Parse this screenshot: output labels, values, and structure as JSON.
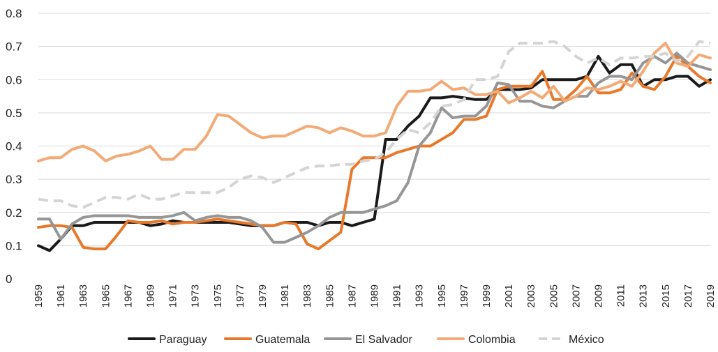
{
  "chart_data": {
    "type": "line",
    "title": "",
    "xlabel": "",
    "ylabel": "",
    "ylim": [
      0,
      0.8
    ],
    "yticks": [
      "0",
      "0.1",
      "0.2",
      "0.3",
      "0.4",
      "0.5",
      "0.6",
      "0.7",
      "0.8"
    ],
    "grid": "horizontal",
    "legend_position": "bottom",
    "x": [
      1959,
      1960,
      1961,
      1962,
      1963,
      1964,
      1965,
      1966,
      1967,
      1968,
      1969,
      1970,
      1971,
      1972,
      1973,
      1974,
      1975,
      1976,
      1977,
      1978,
      1979,
      1980,
      1981,
      1982,
      1983,
      1984,
      1985,
      1986,
      1987,
      1988,
      1989,
      1990,
      1991,
      1992,
      1993,
      1994,
      1995,
      1996,
      1997,
      1998,
      1999,
      2000,
      2001,
      2002,
      2003,
      2004,
      2005,
      2006,
      2007,
      2008,
      2009,
      2010,
      2011,
      2012,
      2013,
      2014,
      2015,
      2016,
      2017,
      2018,
      2019
    ],
    "xticks": [
      "1959",
      "1961",
      "1963",
      "1965",
      "1967",
      "1969",
      "1971",
      "1973",
      "1975",
      "1977",
      "1979",
      "1981",
      "1983",
      "1985",
      "1987",
      "1989",
      "1991",
      "1993",
      "1995",
      "1997",
      "1999",
      "2001",
      "2003",
      "2005",
      "2007",
      "2009",
      "2011",
      "2013",
      "2015",
      "2017",
      "2019"
    ],
    "series": [
      {
        "name": "Paraguay",
        "color": "#1a1a1a",
        "dash": false,
        "values": [
          0.1,
          0.085,
          0.12,
          0.16,
          0.16,
          0.17,
          0.17,
          0.17,
          0.17,
          0.17,
          0.16,
          0.165,
          0.175,
          0.17,
          0.17,
          0.17,
          0.17,
          0.17,
          0.165,
          0.16,
          0.16,
          0.16,
          0.17,
          0.17,
          0.17,
          0.16,
          0.17,
          0.17,
          0.16,
          0.17,
          0.18,
          0.42,
          0.42,
          0.46,
          0.49,
          0.545,
          0.545,
          0.55,
          0.545,
          0.54,
          0.54,
          0.57,
          0.57,
          0.57,
          0.575,
          0.6,
          0.6,
          0.6,
          0.6,
          0.61,
          0.67,
          0.62,
          0.645,
          0.645,
          0.58,
          0.6,
          0.6,
          0.61,
          0.61,
          0.58,
          0.6
        ]
      },
      {
        "name": "Guatemala",
        "color": "#e8792b",
        "dash": false,
        "values": [
          0.155,
          0.16,
          0.16,
          0.155,
          0.095,
          0.09,
          0.09,
          0.13,
          0.175,
          0.17,
          0.17,
          0.175,
          0.165,
          0.17,
          0.17,
          0.175,
          0.18,
          0.175,
          0.17,
          0.165,
          0.16,
          0.16,
          0.17,
          0.165,
          0.105,
          0.09,
          0.115,
          0.14,
          0.33,
          0.365,
          0.365,
          0.365,
          0.38,
          0.39,
          0.4,
          0.4,
          0.42,
          0.44,
          0.48,
          0.48,
          0.49,
          0.57,
          0.58,
          0.58,
          0.58,
          0.625,
          0.54,
          0.54,
          0.57,
          0.61,
          0.56,
          0.56,
          0.57,
          0.62,
          0.58,
          0.57,
          0.61,
          0.67,
          0.64,
          0.61,
          0.59
        ]
      },
      {
        "name": "El Salvador",
        "color": "#969696",
        "dash": false,
        "values": [
          0.18,
          0.18,
          0.12,
          0.165,
          0.185,
          0.19,
          0.19,
          0.19,
          0.19,
          0.185,
          0.185,
          0.185,
          0.19,
          0.2,
          0.175,
          0.185,
          0.19,
          0.185,
          0.185,
          0.175,
          0.155,
          0.11,
          0.11,
          0.125,
          0.14,
          0.16,
          0.185,
          0.2,
          0.2,
          0.2,
          0.21,
          0.22,
          0.235,
          0.29,
          0.4,
          0.44,
          0.515,
          0.485,
          0.49,
          0.49,
          0.52,
          0.59,
          0.585,
          0.535,
          0.535,
          0.52,
          0.515,
          0.535,
          0.55,
          0.55,
          0.59,
          0.61,
          0.61,
          0.6,
          0.65,
          0.67,
          0.65,
          0.68,
          0.65,
          0.64,
          0.63
        ]
      },
      {
        "name": "Colombia",
        "color": "#f3aa76",
        "dash": false,
        "values": [
          0.355,
          0.365,
          0.365,
          0.39,
          0.4,
          0.385,
          0.355,
          0.37,
          0.375,
          0.385,
          0.4,
          0.36,
          0.36,
          0.39,
          0.39,
          0.43,
          0.495,
          0.49,
          0.465,
          0.44,
          0.425,
          0.43,
          0.43,
          0.445,
          0.46,
          0.455,
          0.44,
          0.455,
          0.445,
          0.43,
          0.43,
          0.44,
          0.52,
          0.565,
          0.565,
          0.57,
          0.595,
          0.57,
          0.575,
          0.555,
          0.555,
          0.565,
          0.53,
          0.545,
          0.565,
          0.545,
          0.58,
          0.535,
          0.55,
          0.575,
          0.57,
          0.58,
          0.595,
          0.58,
          0.625,
          0.68,
          0.71,
          0.65,
          0.64,
          0.675,
          0.665
        ]
      },
      {
        "name": "México",
        "color": "#d4d4d4",
        "dash": true,
        "values": [
          0.24,
          0.235,
          0.235,
          0.22,
          0.215,
          0.23,
          0.245,
          0.245,
          0.24,
          0.255,
          0.24,
          0.24,
          0.25,
          0.26,
          0.26,
          0.26,
          0.26,
          0.275,
          0.3,
          0.31,
          0.305,
          0.29,
          0.305,
          0.32,
          0.335,
          0.34,
          0.34,
          0.345,
          0.345,
          0.355,
          0.36,
          0.38,
          0.42,
          0.45,
          0.44,
          0.47,
          0.52,
          0.525,
          0.54,
          0.6,
          0.6,
          0.61,
          0.685,
          0.71,
          0.71,
          0.71,
          0.715,
          0.7,
          0.67,
          0.65,
          0.665,
          0.645,
          0.665,
          0.665,
          0.67,
          0.67,
          0.68,
          0.655,
          0.67,
          0.715,
          0.71
        ]
      }
    ]
  }
}
